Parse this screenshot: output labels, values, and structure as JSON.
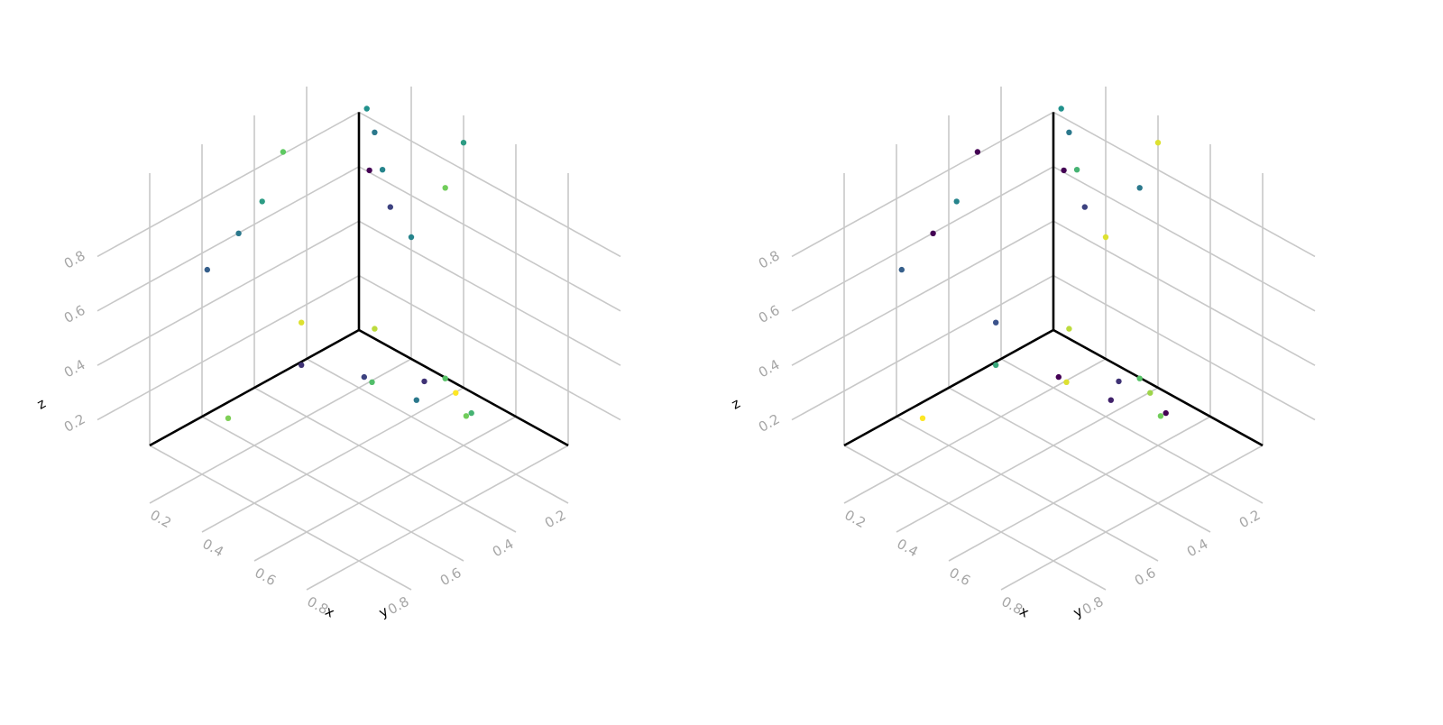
{
  "chart_data": [
    {
      "type": "scatter",
      "projection": "3d",
      "axes": {
        "x": {
          "label": "x",
          "ticks": [
            0.2,
            0.4,
            0.6,
            0.8
          ],
          "tick_labels": [
            "0.2",
            "0.4",
            "0.6",
            "0.8"
          ],
          "range": [
            0,
            1
          ]
        },
        "y": {
          "label": "y",
          "ticks": [
            0.2,
            0.4,
            0.6,
            0.8
          ],
          "tick_labels": [
            "0.2",
            "0.4",
            "0.6",
            "0.8"
          ],
          "range": [
            0,
            1
          ]
        },
        "z": {
          "label": "z",
          "ticks": [
            0.2,
            0.4,
            0.6,
            0.8
          ],
          "tick_labels": [
            "0.2",
            "0.4",
            "0.6",
            "0.8"
          ],
          "range": [
            0,
            1
          ]
        }
      },
      "grid": true,
      "colormap": "viridis",
      "points": [
        {
          "x": 0.02,
          "y": 0.6,
          "z": 0.55,
          "c": 0.3
        },
        {
          "x": 0.02,
          "y": 0.48,
          "z": 0.62,
          "c": 0.4
        },
        {
          "x": 0.03,
          "y": 0.4,
          "z": 0.7,
          "c": 0.55
        },
        {
          "x": 0.04,
          "y": 0.33,
          "z": 0.85,
          "c": 0.75
        },
        {
          "x": 0.05,
          "y": 0.02,
          "z": 0.85,
          "c": 0.5
        },
        {
          "x": 0.08,
          "y": 0.04,
          "z": 0.65,
          "c": 0.0
        },
        {
          "x": 0.1,
          "y": 0.04,
          "z": 0.8,
          "c": 0.4
        },
        {
          "x": 0.1,
          "y": 0.32,
          "z": 0.25,
          "c": 0.95
        },
        {
          "x": 0.12,
          "y": 0.06,
          "z": 0.1,
          "c": 0.9
        },
        {
          "x": 0.15,
          "y": 0.06,
          "z": 0.7,
          "c": 0.45
        },
        {
          "x": 0.15,
          "y": 0.65,
          "z": 0.1,
          "c": 0.8
        },
        {
          "x": 0.2,
          "y": 0.08,
          "z": 0.6,
          "c": 0.2
        },
        {
          "x": 0.2,
          "y": 0.42,
          "z": 0.2,
          "c": 0.15
        },
        {
          "x": 0.22,
          "y": 0.2,
          "z": 0.05,
          "c": 0.2
        },
        {
          "x": 0.25,
          "y": 0.05,
          "z": 0.5,
          "c": 0.45
        },
        {
          "x": 0.3,
          "y": 0.25,
          "z": 0.1,
          "c": 0.7
        },
        {
          "x": 0.35,
          "y": 0.1,
          "z": 0.05,
          "c": 0.15
        },
        {
          "x": 0.38,
          "y": 0.05,
          "z": 0.05,
          "c": 0.72
        },
        {
          "x": 0.38,
          "y": 0.05,
          "z": 0.75,
          "c": 0.78
        },
        {
          "x": 0.4,
          "y": 0.18,
          "z": 0.05,
          "c": 0.4
        },
        {
          "x": 0.45,
          "y": 0.08,
          "z": 0.05,
          "c": 1.0
        },
        {
          "x": 0.4,
          "y": 0.0,
          "z": 0.9,
          "c": 0.55
        },
        {
          "x": 0.55,
          "y": 0.12,
          "z": 0.05,
          "c": 0.65
        },
        {
          "x": 0.55,
          "y": 0.14,
          "z": 0.05,
          "c": 0.78
        }
      ]
    },
    {
      "type": "scatter",
      "projection": "3d",
      "axes": {
        "x": {
          "label": "x",
          "ticks": [
            0.2,
            0.4,
            0.6,
            0.8
          ],
          "tick_labels": [
            "0.2",
            "0.4",
            "0.6",
            "0.8"
          ],
          "range": [
            0,
            1
          ]
        },
        "y": {
          "label": "y",
          "ticks": [
            0.2,
            0.4,
            0.6,
            0.8
          ],
          "tick_labels": [
            "0.2",
            "0.4",
            "0.6",
            "0.8"
          ],
          "range": [
            0,
            1
          ]
        },
        "z": {
          "label": "z",
          "ticks": [
            0.2,
            0.4,
            0.6,
            0.8
          ],
          "tick_labels": [
            "0.2",
            "0.4",
            "0.6",
            "0.8"
          ],
          "range": [
            0,
            1
          ]
        }
      },
      "grid": true,
      "colormap": "viridis",
      "points": [
        {
          "x": 0.02,
          "y": 0.6,
          "z": 0.55,
          "c": 0.3
        },
        {
          "x": 0.02,
          "y": 0.48,
          "z": 0.62,
          "c": 0.0
        },
        {
          "x": 0.03,
          "y": 0.4,
          "z": 0.7,
          "c": 0.45
        },
        {
          "x": 0.04,
          "y": 0.33,
          "z": 0.85,
          "c": 0.0
        },
        {
          "x": 0.05,
          "y": 0.02,
          "z": 0.85,
          "c": 0.5
        },
        {
          "x": 0.08,
          "y": 0.04,
          "z": 0.65,
          "c": 0.0
        },
        {
          "x": 0.1,
          "y": 0.04,
          "z": 0.8,
          "c": 0.4
        },
        {
          "x": 0.1,
          "y": 0.32,
          "z": 0.25,
          "c": 0.25
        },
        {
          "x": 0.12,
          "y": 0.06,
          "z": 0.1,
          "c": 0.9
        },
        {
          "x": 0.15,
          "y": 0.06,
          "z": 0.7,
          "c": 0.65
        },
        {
          "x": 0.15,
          "y": 0.65,
          "z": 0.1,
          "c": 1.0
        },
        {
          "x": 0.2,
          "y": 0.08,
          "z": 0.6,
          "c": 0.2
        },
        {
          "x": 0.2,
          "y": 0.42,
          "z": 0.2,
          "c": 0.6
        },
        {
          "x": 0.22,
          "y": 0.2,
          "z": 0.05,
          "c": 0.0
        },
        {
          "x": 0.25,
          "y": 0.05,
          "z": 0.5,
          "c": 0.95
        },
        {
          "x": 0.3,
          "y": 0.25,
          "z": 0.1,
          "c": 0.95
        },
        {
          "x": 0.35,
          "y": 0.1,
          "z": 0.05,
          "c": 0.15
        },
        {
          "x": 0.38,
          "y": 0.05,
          "z": 0.05,
          "c": 0.72
        },
        {
          "x": 0.38,
          "y": 0.05,
          "z": 0.75,
          "c": 0.4
        },
        {
          "x": 0.4,
          "y": 0.18,
          "z": 0.05,
          "c": 0.1
        },
        {
          "x": 0.45,
          "y": 0.08,
          "z": 0.05,
          "c": 0.85
        },
        {
          "x": 0.4,
          "y": 0.0,
          "z": 0.9,
          "c": 0.95
        },
        {
          "x": 0.55,
          "y": 0.12,
          "z": 0.05,
          "c": 0.0
        },
        {
          "x": 0.55,
          "y": 0.14,
          "z": 0.05,
          "c": 0.78
        }
      ]
    }
  ]
}
